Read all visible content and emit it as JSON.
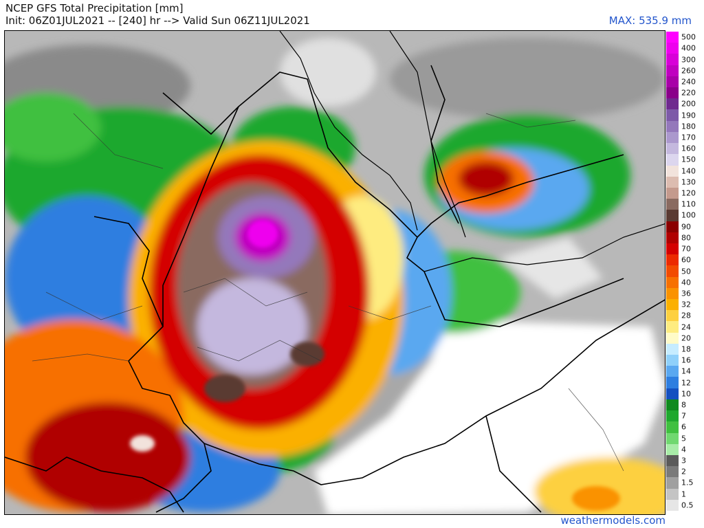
{
  "header": {
    "title": "NCEP GFS Total Precipitation [mm]",
    "subtitle": "Init: 06Z01JUL2021 -- [240] hr --> Valid Sun 06Z11JUL2021",
    "max_label": "MAX: 535.9 mm"
  },
  "footer": {
    "credit": "weathermodels.com"
  },
  "legend": {
    "levels": [
      {
        "label": "500",
        "color": "#ff00ff"
      },
      {
        "label": "400",
        "color": "#ee00ee"
      },
      {
        "label": "300",
        "color": "#d800d8"
      },
      {
        "label": "260",
        "color": "#c000c0"
      },
      {
        "label": "240",
        "color": "#a800a8"
      },
      {
        "label": "220",
        "color": "#8a008a"
      },
      {
        "label": "200",
        "color": "#6f2a8f"
      },
      {
        "label": "190",
        "color": "#7d5aa8"
      },
      {
        "label": "180",
        "color": "#9478bb"
      },
      {
        "label": "170",
        "color": "#ab98cd"
      },
      {
        "label": "160",
        "color": "#c4b8de"
      },
      {
        "label": "150",
        "color": "#dcd6ee"
      },
      {
        "label": "140",
        "color": "#f2e3dc"
      },
      {
        "label": "130",
        "color": "#dcbcb0"
      },
      {
        "label": "120",
        "color": "#c49a8d"
      },
      {
        "label": "110",
        "color": "#8a6a60"
      },
      {
        "label": "100",
        "color": "#5a3a32"
      },
      {
        "label": "90",
        "color": "#8b0000"
      },
      {
        "label": "80",
        "color": "#b00000"
      },
      {
        "label": "70",
        "color": "#d40000"
      },
      {
        "label": "60",
        "color": "#ec2a00"
      },
      {
        "label": "50",
        "color": "#f24b00"
      },
      {
        "label": "40",
        "color": "#f77000"
      },
      {
        "label": "36",
        "color": "#fa9200"
      },
      {
        "label": "32",
        "color": "#fbb000"
      },
      {
        "label": "28",
        "color": "#fdd040"
      },
      {
        "label": "24",
        "color": "#feec80"
      },
      {
        "label": "20",
        "color": "#fffbc8"
      },
      {
        "label": "18",
        "color": "#c6ecff"
      },
      {
        "label": "16",
        "color": "#8fd0fa"
      },
      {
        "label": "14",
        "color": "#5aa8f0"
      },
      {
        "label": "12",
        "color": "#2e7ee0"
      },
      {
        "label": "10",
        "color": "#1450c0"
      },
      {
        "label": "8",
        "color": "#0f8a1e"
      },
      {
        "label": "7",
        "color": "#1fa82e"
      },
      {
        "label": "6",
        "color": "#40c040"
      },
      {
        "label": "5",
        "color": "#70d870"
      },
      {
        "label": "4",
        "color": "#a8eca8"
      },
      {
        "label": "3",
        "color": "#5a5a5a"
      },
      {
        "label": "2",
        "color": "#7a7a7a"
      },
      {
        "label": "1.5",
        "color": "#a0a0a0"
      },
      {
        "label": "1",
        "color": "#c4c4c4"
      },
      {
        "label": "0.5",
        "color": "#e6e6e6"
      }
    ]
  }
}
